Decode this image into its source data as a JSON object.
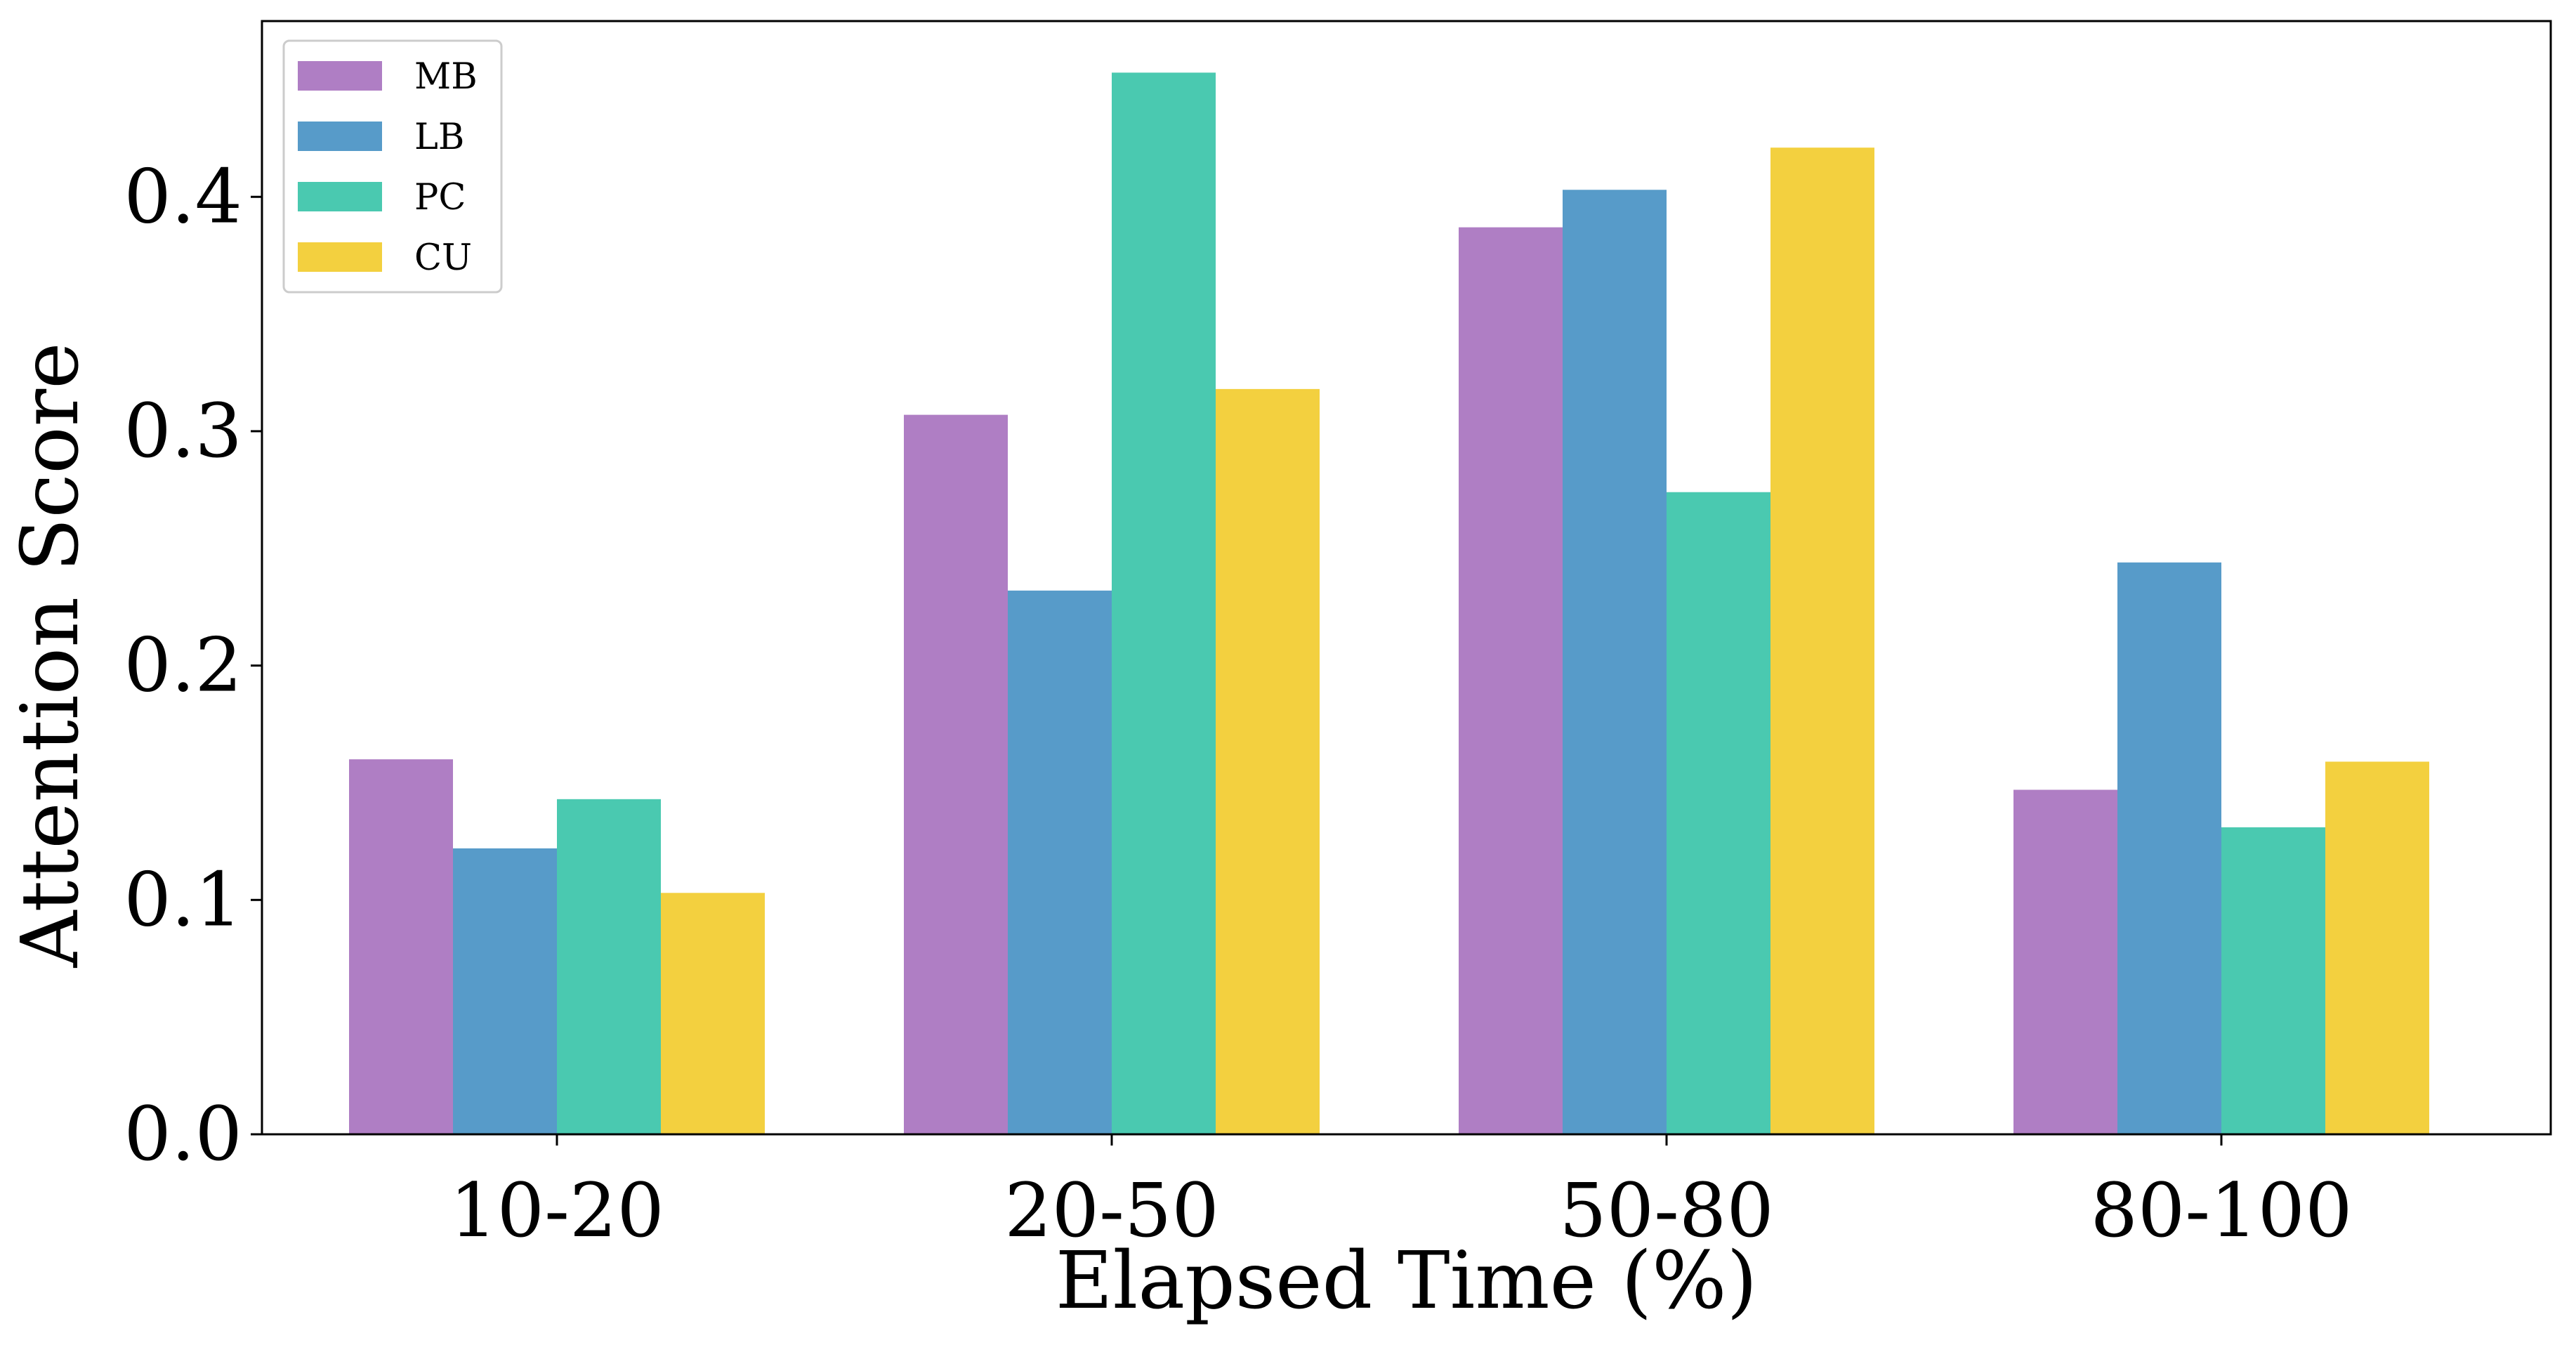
{
  "chart_data": {
    "type": "bar",
    "xlabel": "Elapsed Time (%)",
    "ylabel": "Attention Score",
    "categories": [
      "10-20",
      "20-50",
      "50-80",
      "80-100"
    ],
    "ylim": [
      0,
      0.475
    ],
    "yticks": [
      0.0,
      0.1,
      0.2,
      0.3,
      0.4
    ],
    "ytick_labels": [
      "0.0",
      "0.1",
      "0.2",
      "0.3",
      "0.4"
    ],
    "grid": false,
    "legend_position": "top-left",
    "series": [
      {
        "name": "MB",
        "color": "#af7ec4",
        "values": [
          0.16,
          0.307,
          0.387,
          0.147
        ]
      },
      {
        "name": "LB",
        "color": "#579bc9",
        "values": [
          0.122,
          0.232,
          0.403,
          0.244
        ]
      },
      {
        "name": "PC",
        "color": "#4ac9b0",
        "values": [
          0.143,
          0.453,
          0.274,
          0.131
        ]
      },
      {
        "name": "CU",
        "color": "#f3d03f",
        "values": [
          0.103,
          0.318,
          0.421,
          0.159
        ]
      }
    ]
  }
}
